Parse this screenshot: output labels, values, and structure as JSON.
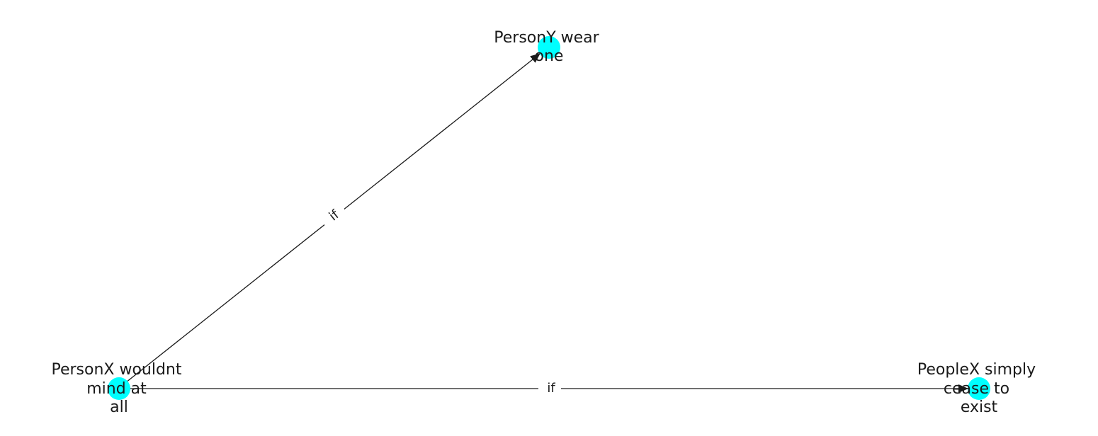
{
  "diagram": {
    "node_color": "#00ffff",
    "edge_color": "#1a1a1a",
    "nodes": [
      {
        "id": "personx",
        "label_lines": [
          "PersonX wouldnt",
          "mind at",
          "all"
        ]
      },
      {
        "id": "persony",
        "label_lines": [
          "PersonY wear",
          "one"
        ]
      },
      {
        "id": "peoplex",
        "label_lines": [
          "PeopleX simply",
          "cease to",
          "exist"
        ]
      }
    ],
    "edges": [
      {
        "from": "personx",
        "to": "persony",
        "label": "if"
      },
      {
        "from": "personx",
        "to": "peoplex",
        "label": "if"
      }
    ]
  }
}
